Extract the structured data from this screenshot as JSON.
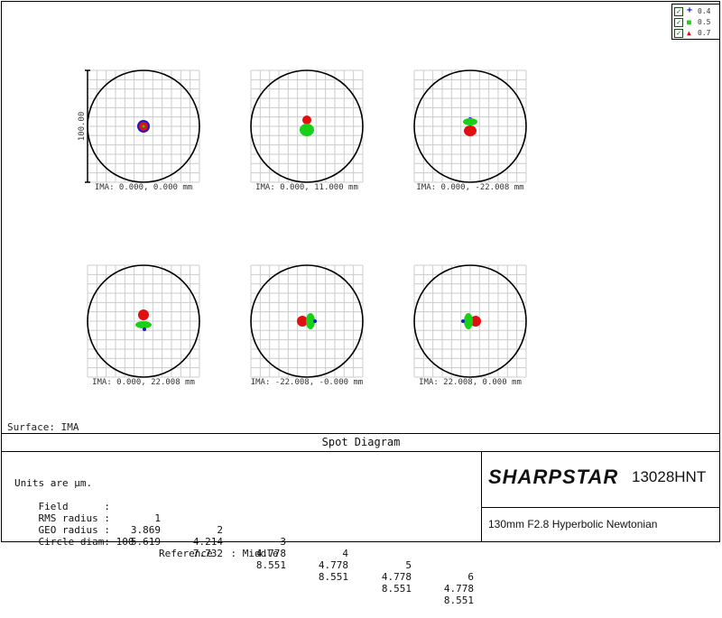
{
  "surface_label": "Surface: IMA",
  "title": "Spot Diagram",
  "scale_label": "100.00",
  "legend": [
    {
      "mark": "+",
      "value": "0.4",
      "color": "#1a1acc"
    },
    {
      "mark": "■",
      "value": "0.5",
      "color": "#18d018"
    },
    {
      "mark": "▲",
      "value": "0.7",
      "color": "#e01010"
    }
  ],
  "fields": [
    {
      "label": "IMA: 0.000, 0.000 mm"
    },
    {
      "label": "IMA: 0.000, 11.000 mm"
    },
    {
      "label": "IMA: 0.000, -22.008 mm"
    },
    {
      "label": "IMA: 0.000, 22.008 mm"
    },
    {
      "label": "IMA: -22.008, -0.000 mm"
    },
    {
      "label": "IMA: 22.008, 0.000 mm"
    }
  ],
  "units_line": "Units are µm.",
  "table": {
    "rows": [
      {
        "label": "Field      :",
        "values": [
          "1",
          "2",
          "3",
          "4",
          "5",
          "6"
        ]
      },
      {
        "label": "RMS radius :",
        "values": [
          "3.869",
          "4.214",
          "4.778",
          "4.778",
          "4.778",
          "4.778"
        ]
      },
      {
        "label": "GEO radius :",
        "values": [
          "5.619",
          "7.732",
          "8.551",
          "8.551",
          "8.551",
          "8.551"
        ]
      }
    ],
    "circle_diam": "Circle diam: 100",
    "reference": "Reference   : Middle"
  },
  "brand": "SHARPSTAR",
  "model": "13028HNT",
  "subtitle": "130mm F2.8 Hyperbolic Newtonian",
  "colors": {
    "blue": "#1a1acc",
    "green": "#18d018",
    "red": "#e01010",
    "grid": "#cccccc"
  }
}
